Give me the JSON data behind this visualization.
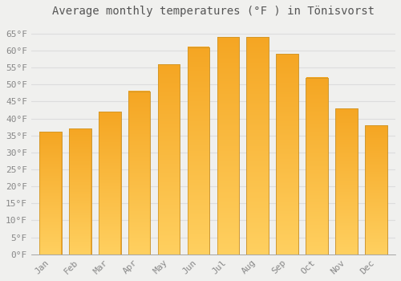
{
  "title": "Average monthly temperatures (°F ) in Tönisvorst",
  "months": [
    "Jan",
    "Feb",
    "Mar",
    "Apr",
    "May",
    "Jun",
    "Jul",
    "Aug",
    "Sep",
    "Oct",
    "Nov",
    "Dec"
  ],
  "values": [
    36,
    37,
    42,
    48,
    56,
    61,
    64,
    64,
    59,
    52,
    43,
    38
  ],
  "bar_color_top": "#F5A623",
  "bar_color_bottom": "#FFD060",
  "bar_edge_color": "#C8922A",
  "background_color": "#F0F0EE",
  "plot_bg_color": "#F0F0EE",
  "grid_color": "#DDDDDD",
  "ylim": [
    0,
    68
  ],
  "yticks": [
    0,
    5,
    10,
    15,
    20,
    25,
    30,
    35,
    40,
    45,
    50,
    55,
    60,
    65
  ],
  "ylabel_suffix": "°F",
  "title_fontsize": 10,
  "tick_fontsize": 8,
  "title_color": "#555555",
  "tick_color": "#888888",
  "bar_width": 0.75
}
